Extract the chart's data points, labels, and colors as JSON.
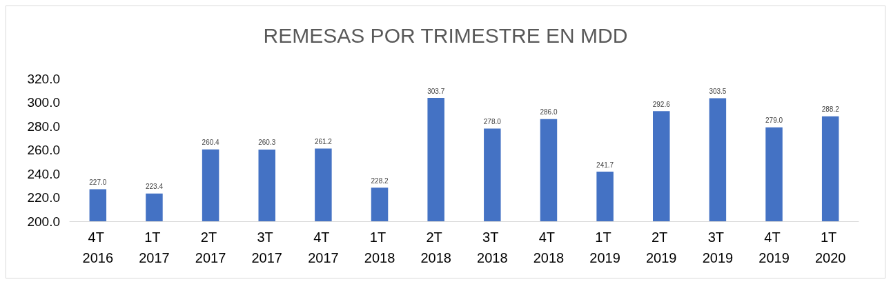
{
  "chart_data": {
    "type": "bar",
    "title": "REMESAS POR TRIMESTRE EN MDD",
    "categories": [
      "4T 2016",
      "1T 2017",
      "2T 2017",
      "3T 2017",
      "4T 2017",
      "1T 2018",
      "2T 2018",
      "3T 2018",
      "4T 2018",
      "1T 2019",
      "2T 2019",
      "3T 2019",
      "4T 2019",
      "1T 2020"
    ],
    "values": [
      227.0,
      223.4,
      260.4,
      260.3,
      261.2,
      228.2,
      303.7,
      278.0,
      286.0,
      241.7,
      292.6,
      303.5,
      279.0,
      288.2
    ],
    "value_labels": [
      "227.0",
      "223.4",
      "260.4",
      "260.3",
      "261.2",
      "228.2",
      "303.7",
      "278.0",
      "286.0",
      "241.7",
      "292.6",
      "303.5",
      "279.0",
      "288.2"
    ],
    "color": "#4472c4",
    "ylim": [
      200,
      320
    ],
    "yticks": [
      {
        "value": 200,
        "label": "200.0"
      },
      {
        "value": 220,
        "label": "220.0"
      },
      {
        "value": 240,
        "label": "240.0"
      },
      {
        "value": 260,
        "label": "260.0"
      },
      {
        "value": 280,
        "label": "280.0"
      },
      {
        "value": 300,
        "label": "300.0"
      },
      {
        "value": 320,
        "label": "320.0"
      }
    ],
    "grid": false
  }
}
